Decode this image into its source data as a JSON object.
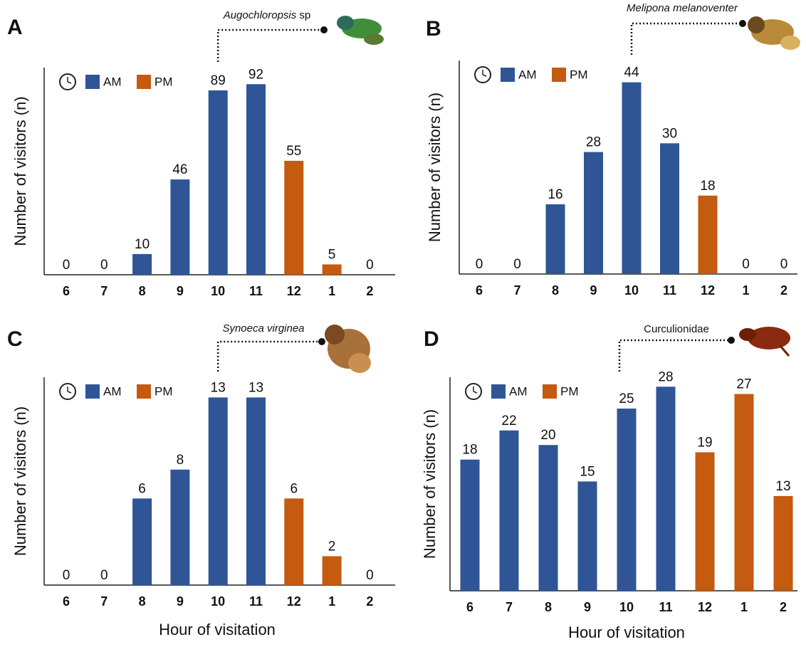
{
  "chart_data": [
    {
      "type": "bar",
      "panel": "A",
      "annotation": [
        {
          "text": "Augochloropsis",
          "italic": true
        },
        {
          "text": " sp",
          "italic": false
        }
      ],
      "y_label": "Number of visitors (n)",
      "categories": [
        "6",
        "7",
        "8",
        "9",
        "10",
        "11",
        "12",
        "1",
        "2"
      ],
      "series": [
        {
          "name": "AM",
          "color": "#2f5597",
          "values": [
            0,
            0,
            10,
            46,
            89,
            92,
            null,
            null,
            null
          ]
        },
        {
          "name": "PM",
          "color": "#c55a11",
          "values": [
            null,
            null,
            null,
            null,
            null,
            null,
            55,
            5,
            0
          ]
        }
      ],
      "ylim": [
        0,
        100
      ]
    },
    {
      "type": "bar",
      "panel": "B",
      "annotation": [
        {
          "text": "Melipona melanoventer",
          "italic": true
        }
      ],
      "y_label": "Number of visitors (n)",
      "categories": [
        "6",
        "7",
        "8",
        "9",
        "10",
        "11",
        "12",
        "1",
        "2"
      ],
      "series": [
        {
          "name": "AM",
          "color": "#2f5597",
          "values": [
            0,
            0,
            16,
            28,
            44,
            30,
            null,
            null,
            null
          ]
        },
        {
          "name": "PM",
          "color": "#c55a11",
          "values": [
            null,
            null,
            null,
            null,
            null,
            null,
            18,
            0,
            0
          ]
        }
      ],
      "ylim": [
        0,
        49
      ]
    },
    {
      "type": "bar",
      "panel": "C",
      "annotation": [
        {
          "text": "Synoeca virginea",
          "italic": true
        }
      ],
      "y_label": "Number of visitors (n)",
      "x_label": "Hour of visitation",
      "categories": [
        "6",
        "7",
        "8",
        "9",
        "10",
        "11",
        "12",
        "1",
        "2"
      ],
      "series": [
        {
          "name": "AM",
          "color": "#2f5597",
          "values": [
            0,
            0,
            6,
            8,
            13,
            13,
            null,
            null,
            null
          ]
        },
        {
          "name": "PM",
          "color": "#c55a11",
          "values": [
            null,
            null,
            null,
            null,
            null,
            null,
            6,
            2,
            0
          ]
        }
      ],
      "ylim": [
        0,
        14.4
      ]
    },
    {
      "type": "bar",
      "panel": "D",
      "annotation": [
        {
          "text": "Curculionidae",
          "italic": false
        }
      ],
      "y_label": "Number of visitors (n)",
      "x_label": "Hour of visitation",
      "categories": [
        "6",
        "7",
        "8",
        "9",
        "10",
        "11",
        "12",
        "1",
        "2"
      ],
      "series": [
        {
          "name": "AM",
          "color": "#2f5597",
          "values": [
            18,
            22,
            20,
            15,
            25,
            28,
            null,
            null,
            null
          ]
        },
        {
          "name": "PM",
          "color": "#c55a11",
          "values": [
            null,
            null,
            null,
            null,
            null,
            null,
            19,
            27,
            13
          ]
        }
      ],
      "ylim": [
        0,
        29.3
      ]
    }
  ]
}
